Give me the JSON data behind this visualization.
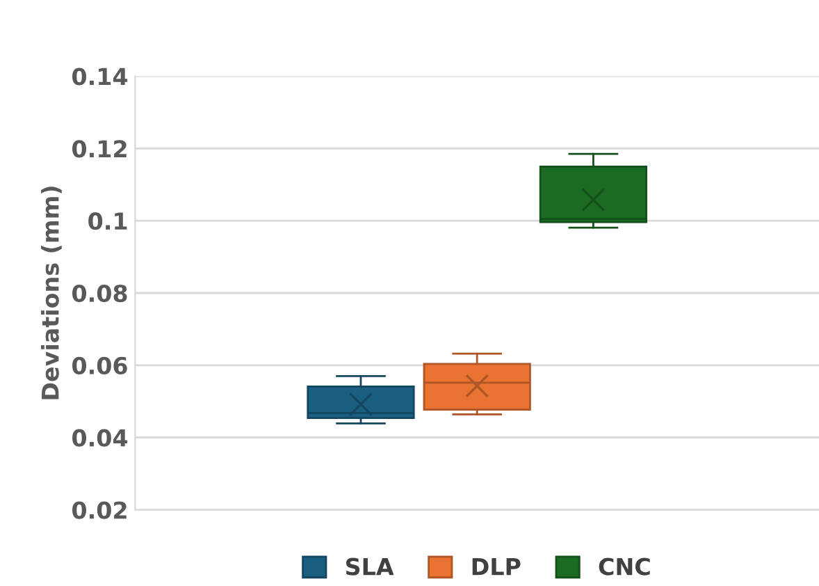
{
  "chart_data": {
    "type": "box",
    "ylabel": "Deviations (mm)",
    "categories": [
      null
    ],
    "ylim": [
      0.02,
      0.14
    ],
    "yticks": [
      0.02,
      0.04,
      0.06,
      0.08,
      {
        "value": 0.1,
        "label": "0.1"
      },
      0.12,
      0.14
    ],
    "grid": "y",
    "legend": "bottom",
    "series": [
      {
        "name": "SLA",
        "color": "#1a5e80",
        "boxes": [
          {
            "low": 0.0439,
            "q1": 0.0454,
            "median": 0.0468,
            "q3": 0.0541,
            "high": 0.057,
            "mean": 0.0492
          }
        ]
      },
      {
        "name": "DLP",
        "color": "#e87332",
        "boxes": [
          {
            "low": 0.0464,
            "q1": 0.0477,
            "median": 0.0552,
            "q3": 0.0604,
            "high": 0.0632,
            "mean": 0.0543
          }
        ]
      },
      {
        "name": "CNC",
        "color": "#1b6b23",
        "boxes": [
          {
            "low": 0.0981,
            "q1": 0.0996,
            "median": 0.1005,
            "q3": 0.115,
            "high": 0.1185,
            "mean": 0.1058
          }
        ]
      }
    ]
  }
}
